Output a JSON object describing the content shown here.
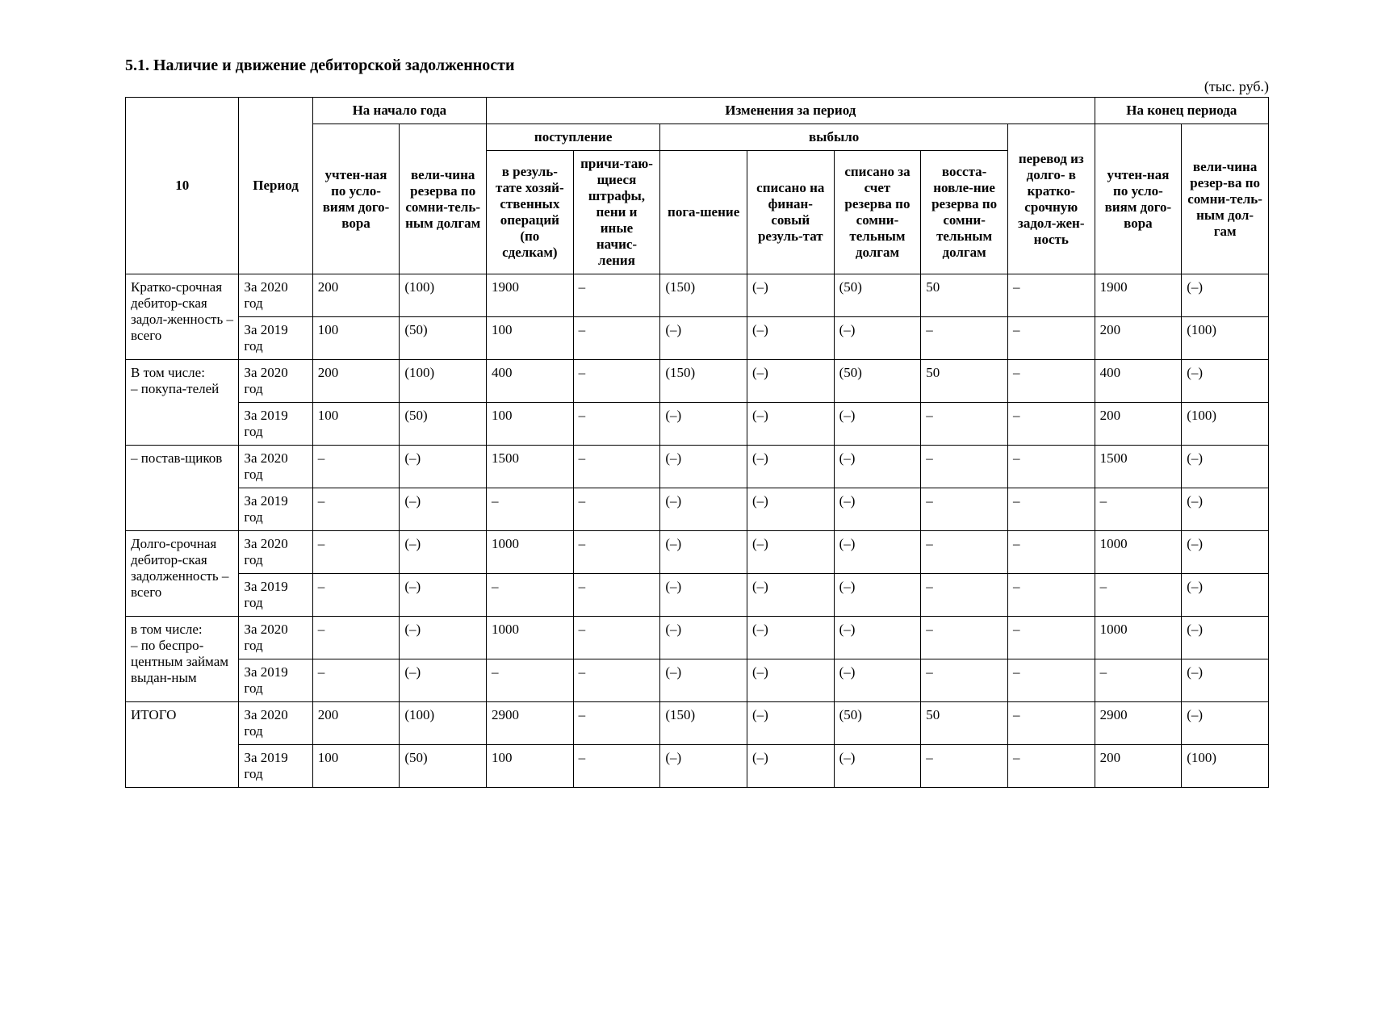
{
  "title": "5.1. Наличие и движение дебиторской задолженности",
  "unit": "(тыс. руб.)",
  "header": {
    "row1": {
      "indicator": "10",
      "period": "Период",
      "start": "На начало года",
      "changes": "Изменения за период",
      "end": "На конец периода"
    },
    "row2": {
      "inflow": "поступление",
      "outflow": "выбыло"
    },
    "cols": {
      "c1": "учтен-ная по усло-виям дого-вора",
      "c2": "вели-чина резерва по сомни-тель-ным долгам",
      "c3": "в резуль-тате хозяй-ственных операций (по сделкам)",
      "c4": "причи-таю-щиеся штрафы, пени и иные начис-ления",
      "c5": "пога-шение",
      "c6": "списано на финан-совый резуль-тат",
      "c7": "списано за счет резерва по сомни-тельным долгам",
      "c8": "восста-новле-ние резерва по сомни-тельным долгам",
      "c9": "перевод из долго- в кратко-срочную задол-жен-ность",
      "c10": "учтен-ная по усло-виям дого-вора",
      "c11": "вели-чина резер-ва по сомни-тель-ным дол-гам"
    }
  },
  "rows": [
    {
      "label": "Кратко-срочная дебитор-ская задол-женность – всего",
      "periods": [
        {
          "period": "За 2020 год",
          "c1": "200",
          "c2": "(100)",
          "c3": "1900",
          "c4": "–",
          "c5": "(150)",
          "c6": "(–)",
          "c7": "(50)",
          "c8": "50",
          "c9": "–",
          "c10": "1900",
          "c11": "(–)"
        },
        {
          "period": "За 2019 год",
          "c1": "100",
          "c2": "(50)",
          "c3": "100",
          "c4": "–",
          "c5": "(–)",
          "c6": "(–)",
          "c7": "(–)",
          "c8": "–",
          "c9": "–",
          "c10": "200",
          "c11": "(100)"
        }
      ]
    },
    {
      "label": "В том числе:\n– покупа-телей",
      "periods": [
        {
          "period": "За 2020 год",
          "c1": "200",
          "c2": "(100)",
          "c3": "400",
          "c4": "–",
          "c5": "(150)",
          "c6": "(–)",
          "c7": "(50)",
          "c8": "50",
          "c9": "–",
          "c10": "400",
          "c11": "(–)"
        },
        {
          "period": "За 2019 год",
          "c1": "100",
          "c2": "(50)",
          "c3": "100",
          "c4": "–",
          "c5": "(–)",
          "c6": "(–)",
          "c7": "(–)",
          "c8": "–",
          "c9": "–",
          "c10": "200",
          "c11": "(100)"
        }
      ]
    },
    {
      "label": "– постав-щиков",
      "periods": [
        {
          "period": "За 2020 год",
          "c1": "–",
          "c2": "(–)",
          "c3": "1500",
          "c4": "–",
          "c5": "(–)",
          "c6": "(–)",
          "c7": "(–)",
          "c8": "–",
          "c9": "–",
          "c10": "1500",
          "c11": "(–)"
        },
        {
          "period": "За 2019 год",
          "c1": "–",
          "c2": "(–)",
          "c3": "–",
          "c4": "–",
          "c5": "(–)",
          "c6": "(–)",
          "c7": "(–)",
          "c8": "–",
          "c9": "–",
          "c10": "–",
          "c11": "(–)"
        }
      ]
    },
    {
      "label": "Долго-срочная дебитор-ская задолженность – всего",
      "periods": [
        {
          "period": "За 2020 год",
          "c1": "–",
          "c2": "(–)",
          "c3": "1000",
          "c4": "–",
          "c5": "(–)",
          "c6": "(–)",
          "c7": "(–)",
          "c8": "–",
          "c9": "–",
          "c10": "1000",
          "c11": "(–)"
        },
        {
          "period": "За 2019 год",
          "c1": "–",
          "c2": "(–)",
          "c3": "–",
          "c4": "–",
          "c5": "(–)",
          "c6": "(–)",
          "c7": "(–)",
          "c8": "–",
          "c9": "–",
          "c10": "–",
          "c11": "(–)"
        }
      ]
    },
    {
      "label": "в том числе:\n– по беспро-центным займам выдан-ным",
      "periods": [
        {
          "period": "За 2020 год",
          "c1": "–",
          "c2": "(–)",
          "c3": "1000",
          "c4": "–",
          "c5": "(–)",
          "c6": "(–)",
          "c7": "(–)",
          "c8": "–",
          "c9": "–",
          "c10": "1000",
          "c11": "(–)"
        },
        {
          "period": "За 2019 год",
          "c1": "–",
          "c2": "(–)",
          "c3": "–",
          "c4": "–",
          "c5": "(–)",
          "c6": "(–)",
          "c7": "(–)",
          "c8": "–",
          "c9": "–",
          "c10": "–",
          "c11": "(–)"
        }
      ]
    },
    {
      "label": "ИТОГО",
      "periods": [
        {
          "period": "За 2020 год",
          "c1": "200",
          "c2": "(100)",
          "c3": "2900",
          "c4": "–",
          "c5": "(150)",
          "c6": "(–)",
          "c7": "(50)",
          "c8": "50",
          "c9": "–",
          "c10": "2900",
          "c11": "(–)"
        },
        {
          "period": "За 2019 год",
          "c1": "100",
          "c2": "(50)",
          "c3": "100",
          "c4": "–",
          "c5": "(–)",
          "c6": "(–)",
          "c7": "(–)",
          "c8": "–",
          "c9": "–",
          "c10": "200",
          "c11": "(100)"
        }
      ]
    }
  ]
}
